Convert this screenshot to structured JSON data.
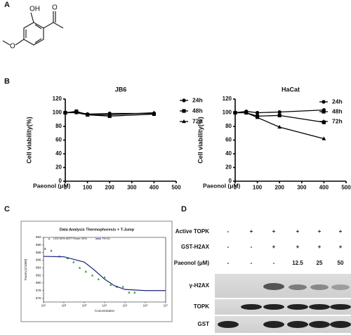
{
  "panel_labels": [
    "A",
    "B",
    "C",
    "D"
  ],
  "structure": {
    "atoms": [
      "OH",
      "O",
      "O"
    ]
  },
  "chart_data": [
    {
      "type": "line",
      "title": "JB6",
      "x_label": "Paeonol (μM)",
      "y_label": "Cell viability(%)",
      "x": [
        0,
        50,
        100,
        200,
        400
      ],
      "xlim": [
        0,
        500
      ],
      "xticks": [
        0,
        100,
        200,
        300,
        400,
        500
      ],
      "ylim": [
        0,
        120
      ],
      "yticks": [
        0,
        20,
        40,
        60,
        80,
        100,
        120
      ],
      "series": [
        {
          "name": "24h",
          "color": "#000000",
          "marker": "circle",
          "values": [
            100,
            101,
            98,
            99,
            99
          ]
        },
        {
          "name": "48h",
          "color": "#000000",
          "marker": "square",
          "values": [
            100,
            102,
            97,
            95,
            98
          ]
        },
        {
          "name": "72h",
          "color": "#000000",
          "marker": "triangle",
          "values": [
            100,
            100,
            97,
            97,
            100
          ]
        }
      ]
    },
    {
      "type": "line",
      "title": "HaCat",
      "x_label": "Paeonol (μM)",
      "y_label": "Cell viability(%)",
      "x": [
        0,
        50,
        100,
        200,
        400
      ],
      "xlim": [
        0,
        500
      ],
      "xticks": [
        0,
        100,
        200,
        300,
        400,
        500
      ],
      "ylim": [
        0,
        120
      ],
      "yticks": [
        0,
        20,
        40,
        60,
        80,
        100,
        120
      ],
      "series": [
        {
          "name": "24h",
          "color": "#000000",
          "marker": "circle",
          "values": [
            100,
            102,
            100,
            101,
            104
          ]
        },
        {
          "name": "48h",
          "color": "#000000",
          "marker": "square",
          "values": [
            100,
            100,
            95,
            96,
            86
          ]
        },
        {
          "name": "72h",
          "color": "#000000",
          "marker": "triangle",
          "values": [
            100,
            100,
            93,
            79,
            62
          ]
        }
      ]
    },
    {
      "type": "scatter",
      "title": "Data Analysis Thermophoresis + T-Jump",
      "x_label": "Concentration",
      "y_label": "Fnorm [1/1000]",
      "xlog": true,
      "xlim": [
        10,
        10000000
      ],
      "xticks": [
        {
          "value": 10,
          "label": "10¹"
        },
        {
          "value": 100,
          "label": "10²"
        },
        {
          "value": 1000,
          "label": "10³"
        },
        {
          "value": 10000,
          "label": "10⁴"
        },
        {
          "value": 100000,
          "label": "10⁵"
        },
        {
          "value": 1000000,
          "label": "10⁶"
        },
        {
          "value": 10000000,
          "label": "10⁷"
        }
      ],
      "ylim": [
        875,
        892
      ],
      "yticks": [
        876,
        878,
        880,
        882,
        884,
        886,
        888,
        890,
        892
      ],
      "series": [
        {
          "name": "LED 50% MST Power 40%",
          "color": "#3a9a3a",
          "marker": "triangle",
          "x": [
            12,
            24,
            60,
            150,
            300,
            600,
            1200,
            2500,
            5000,
            10000,
            20000,
            40000,
            80000,
            160000,
            300000
          ],
          "values": [
            889,
            888.5,
            887,
            886.5,
            885.5,
            884,
            883,
            882,
            881,
            881.5,
            879.5,
            879,
            879,
            877.5,
            877.5
          ]
        },
        {
          "name": "Fit Kd",
          "color": "#1a237e",
          "marker": "none",
          "x": [
            10,
            100,
            1000,
            3000,
            10000,
            30000,
            100000,
            1000000,
            10000000
          ],
          "values": [
            887,
            886.9,
            885.5,
            883.5,
            881,
            879.3,
            878.3,
            878,
            878
          ]
        }
      ]
    }
  ],
  "blot": {
    "rows": [
      {
        "label": "Active TOPK",
        "values": [
          "-",
          "+",
          "+",
          "+",
          "+",
          "+"
        ]
      },
      {
        "label": "GST-H2AX",
        "values": [
          "-",
          "-",
          "+",
          "+",
          "+",
          "+"
        ]
      },
      {
        "label": "Paeonol (μM)",
        "values": [
          "-",
          "-",
          "-",
          "12.5",
          "25",
          "50"
        ]
      }
    ],
    "bands": [
      "γ-H2AX",
      "TOPK",
      "GST"
    ]
  }
}
